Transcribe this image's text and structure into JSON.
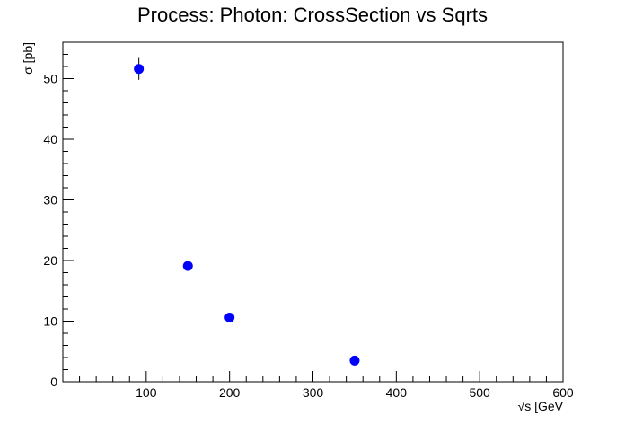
{
  "chart_data": {
    "type": "scatter",
    "title": "Process: Photon: CrossSection vs Sqrts",
    "xlabel": "√s [GeV",
    "ylabel": "σ [pb]",
    "xlim": [
      0,
      600
    ],
    "ylim": [
      0,
      56
    ],
    "x_ticks": [
      100,
      200,
      300,
      400,
      500,
      600
    ],
    "y_ticks": [
      0,
      10,
      20,
      30,
      40,
      50
    ],
    "x_tick_labels": [
      "100",
      "200",
      "300",
      "400",
      "500",
      "600"
    ],
    "y_tick_labels": [
      "0",
      "10",
      "20",
      "30",
      "40",
      "50"
    ],
    "grid": false,
    "legend": "none",
    "marker_color": "#0000ff",
    "points": [
      {
        "x": 91.2,
        "y": 51.6,
        "y_err": 1.8
      },
      {
        "x": 150,
        "y": 19.1,
        "y_err": 0.4
      },
      {
        "x": 200,
        "y": 10.6,
        "y_err": 0.3
      },
      {
        "x": 350,
        "y": 3.5,
        "y_err": 0.2
      }
    ]
  }
}
